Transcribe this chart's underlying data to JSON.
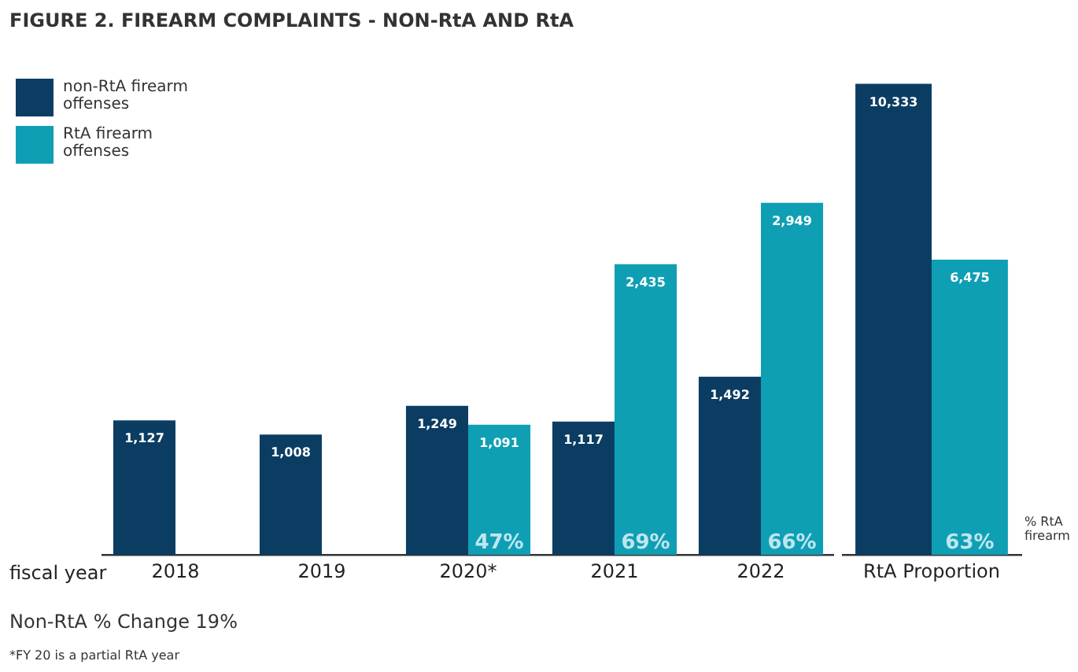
{
  "chart_data": [
    {
      "type": "bar",
      "title": "FIGURE 2. FIREARM COMPLAINTS - NON-RtA AND RtA",
      "xlabel": "fiscal year",
      "categories": [
        "2018",
        "2019",
        "2020*",
        "2021",
        "2022"
      ],
      "series": [
        {
          "name": "non-RtA firearm offenses",
          "color": "#0b3d63",
          "values": [
            1127,
            1008,
            1249,
            1117,
            1492
          ],
          "value_labels": [
            "1,127",
            "1,008",
            "1,249",
            "1,117",
            "1,492"
          ]
        },
        {
          "name": "RtA firearm offenses",
          "color": "#0f9fb5",
          "values": [
            null,
            null,
            1091,
            2435,
            2949
          ],
          "value_labels": [
            null,
            null,
            "1,091",
            "2,435",
            "2,949"
          ]
        }
      ],
      "grid": false,
      "legend": "top left",
      "annotations": [
        {
          "text": "47%",
          "x": "2020*"
        },
        {
          "text": "69%",
          "x": "2021"
        },
        {
          "text": "66%",
          "x": "2022"
        },
        "Non-RtA % Change 19%",
        "*FY 20 is a partial RtA year"
      ]
    },
    {
      "type": "bar",
      "categories": [
        "RtA Proportion"
      ],
      "series": [
        {
          "color": "#0b3d63",
          "values": [
            10333
          ],
          "value_labels": [
            "10,333"
          ]
        },
        {
          "color": "#0f9fb5",
          "values": [
            6475
          ],
          "value_labels": [
            "6,475"
          ]
        }
      ],
      "grid": false,
      "annotations": [
        {
          "text": "63%",
          "x": "RtA Proportion"
        },
        "% RtA firearm"
      ]
    }
  ]
}
